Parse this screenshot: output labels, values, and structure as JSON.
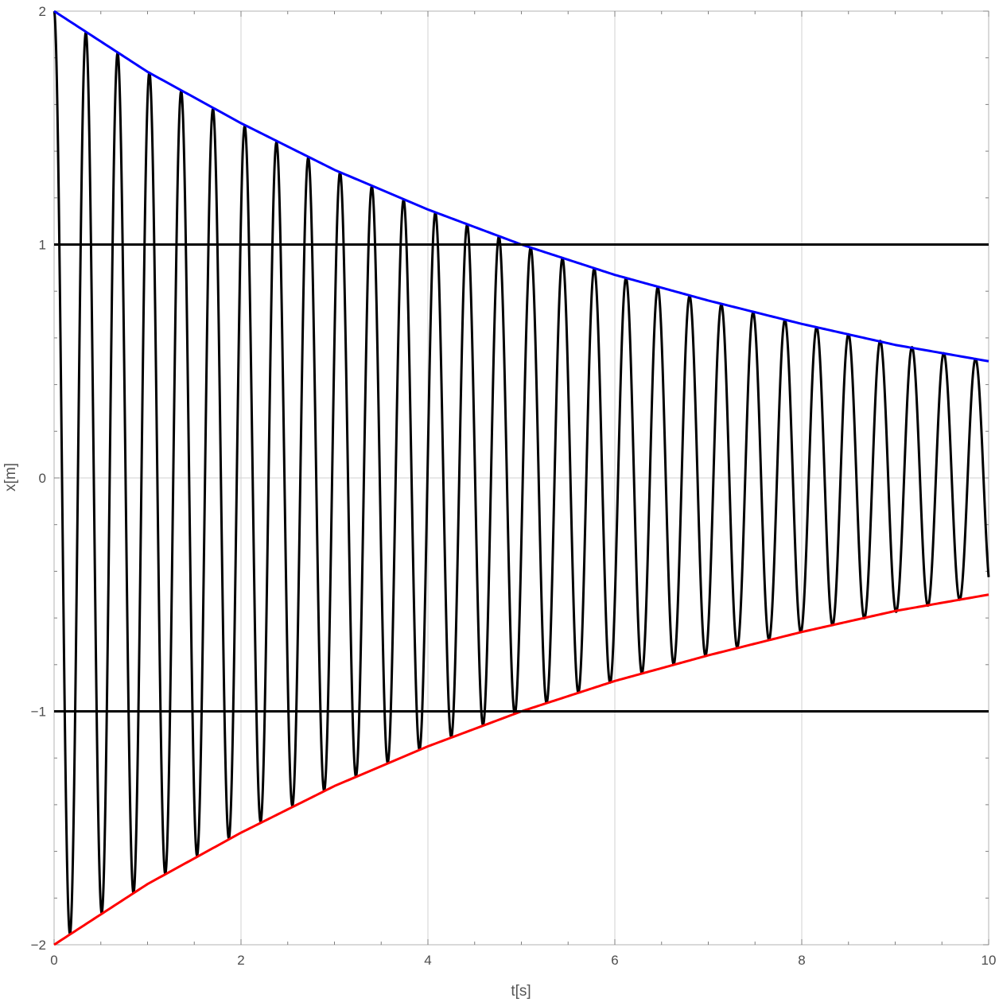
{
  "chart_data": {
    "type": "line",
    "title": "",
    "xlabel": "t[s]",
    "ylabel": "x[m]",
    "xlim": [
      0,
      10
    ],
    "ylim": [
      -2,
      2
    ],
    "x_ticks": [
      0,
      2,
      4,
      6,
      8,
      10
    ],
    "x_tick_labels": [
      "0",
      "2",
      "4",
      "6",
      "8",
      "10"
    ],
    "y_ticks": [
      -2,
      -1,
      0,
      1,
      2
    ],
    "y_tick_labels": [
      "−2",
      "−1",
      "0",
      "1",
      "2"
    ],
    "grid": true,
    "legend": "none",
    "series": [
      {
        "color": "#000000",
        "style": "damped oscillation",
        "amplitude0": 2,
        "envelope_half_life": 5,
        "period": 0.34
      },
      {
        "color": "#0000ff",
        "style": "upper envelope",
        "x": [
          0,
          1,
          2,
          3,
          4,
          5,
          6,
          7,
          8,
          9,
          10
        ],
        "values": [
          2.0,
          1.74,
          1.52,
          1.32,
          1.15,
          1.0,
          0.87,
          0.76,
          0.66,
          0.57,
          0.5
        ]
      },
      {
        "color": "#ff0000",
        "style": "lower envelope",
        "x": [
          0,
          1,
          2,
          3,
          4,
          5,
          6,
          7,
          8,
          9,
          10
        ],
        "values": [
          -2.0,
          -1.74,
          -1.52,
          -1.32,
          -1.15,
          -1.0,
          -0.87,
          -0.76,
          -0.66,
          -0.57,
          -0.5
        ]
      },
      {
        "color": "#000000",
        "style": "horizontal reference",
        "x": [
          0,
          10
        ],
        "values": [
          1,
          1
        ]
      },
      {
        "color": "#000000",
        "style": "horizontal reference",
        "x": [
          0,
          10
        ],
        "values": [
          -1,
          -1
        ]
      }
    ]
  }
}
